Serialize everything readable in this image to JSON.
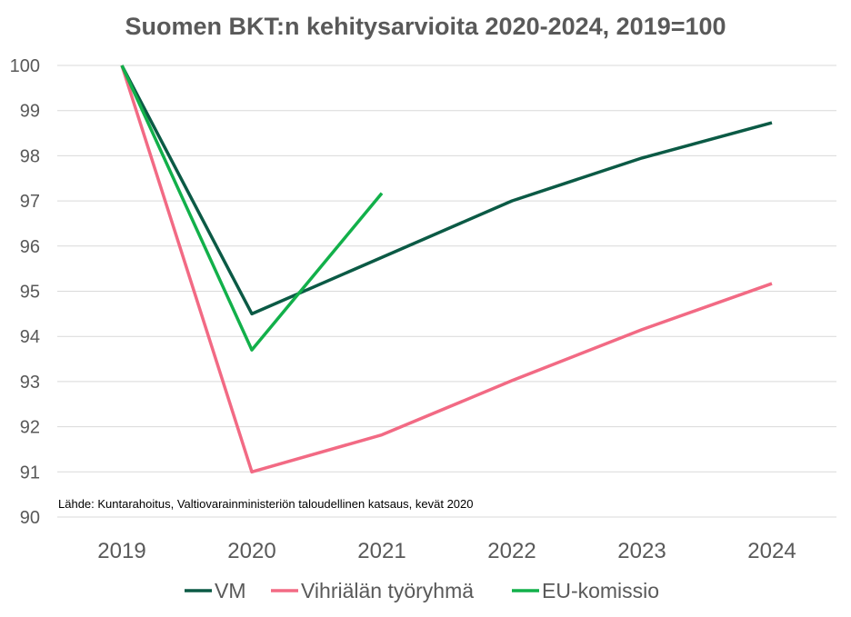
{
  "chart_data": {
    "type": "line",
    "title": "Suomen BKT:n kehitysarvioita 2020-2024, 2019=100",
    "x": [
      "2019",
      "2020",
      "2021",
      "2022",
      "2023",
      "2024"
    ],
    "ylim": [
      90,
      100
    ],
    "yticks": [
      90,
      91,
      92,
      93,
      94,
      95,
      96,
      97,
      98,
      99,
      100
    ],
    "grid": true,
    "legend_position": "bottom",
    "source_note": "Lähde: Kuntarahoitus, Valtiovarainministeriön taloudellinen katsaus, kevät 2020",
    "series": [
      {
        "name": "VM",
        "color": "#0b5a45",
        "values": [
          100,
          94.5,
          95.75,
          97.0,
          97.95,
          98.73
        ]
      },
      {
        "name": "Vihriälän työryhmä",
        "color": "#f26a84",
        "values": [
          100,
          91.0,
          91.82,
          93.02,
          94.15,
          95.17
        ]
      },
      {
        "name": "EU-komissio",
        "color": "#12b04a",
        "values": [
          100,
          93.7,
          97.17,
          null,
          null,
          null
        ]
      }
    ]
  }
}
